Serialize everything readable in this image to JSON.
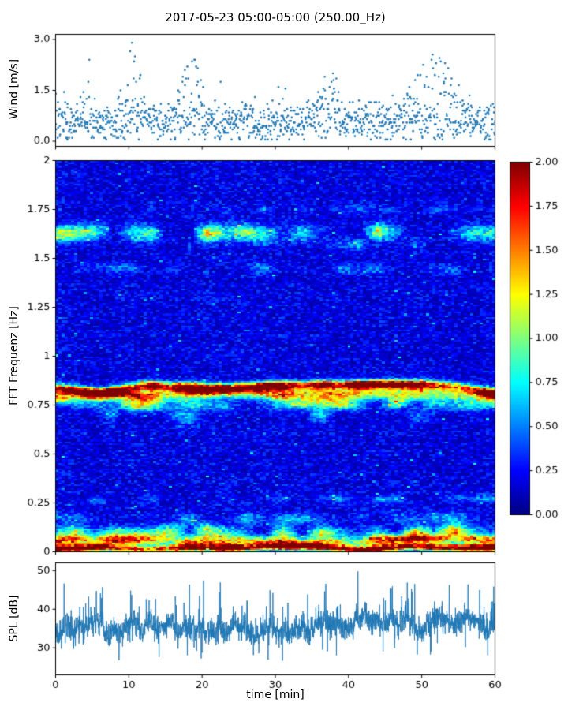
{
  "title": "2017-05-23 05:00-05:00 (250.00_Hz)",
  "xlabel": "time [min]",
  "xticks": [
    0,
    10,
    20,
    30,
    40,
    50,
    60
  ],
  "xtick_labels": [
    "0",
    "10",
    "20",
    "30",
    "40",
    "50",
    "60"
  ],
  "colors": {
    "accent": "#1f77b4",
    "axis": "#000000",
    "background": "#ffffff"
  },
  "chart_data": [
    {
      "type": "scatter",
      "ylabel": "Wind [m/s]",
      "xlim": [
        0,
        60
      ],
      "ylim": [
        -0.15,
        3.15
      ],
      "yticks": [
        0.0,
        1.5,
        3.0
      ],
      "ytick_labels": [
        "0.0",
        "1.5",
        "3.0"
      ],
      "marker_color": "#1f77b4",
      "generation": {
        "seed": 7,
        "points_per_min": 10,
        "samples_per_point": 2,
        "baseline_mean": 0.55,
        "baseline_sd": 0.3,
        "quantize": 0.05,
        "outlier_prob": 0.012,
        "gusts": [
          {
            "start": 2.5,
            "end": 6.0,
            "peak": 1.9
          },
          {
            "start": 7.5,
            "end": 13.5,
            "peak": 3.0
          },
          {
            "start": 15.5,
            "end": 21.5,
            "peak": 3.0
          },
          {
            "start": 24.5,
            "end": 27.0,
            "peak": 1.4
          },
          {
            "start": 33.0,
            "end": 42.5,
            "peak": 2.3
          },
          {
            "start": 45.0,
            "end": 58.5,
            "peak": 2.9
          }
        ]
      }
    },
    {
      "type": "heatmap",
      "ylabel": "FFT Frequenz [Hz]",
      "xlim": [
        0,
        60
      ],
      "ylim": [
        0,
        2
      ],
      "yticks": [
        0,
        0.25,
        0.5,
        0.75,
        1,
        1.25,
        1.5,
        1.75,
        2
      ],
      "ytick_labels": [
        "0",
        "0.25",
        "0.5",
        "0.75",
        "1",
        "1.25",
        "1.5",
        "1.75",
        "2"
      ],
      "colormap": "jet",
      "clim": [
        0,
        2
      ],
      "colorbar": {
        "ticks": [
          0,
          0.25,
          0.5,
          0.75,
          1.0,
          1.25,
          1.5,
          1.75,
          2.0
        ],
        "tick_labels": [
          "0.00",
          "0.25",
          "0.50",
          "0.75",
          "1.00",
          "1.25",
          "1.50",
          "1.75",
          "2.00"
        ]
      },
      "generation": {
        "seed": 3,
        "nx": 140,
        "ny": 220,
        "bg_base": 0.08,
        "bg_noise": 0.3,
        "speck_prob": 0.02,
        "speck_amp": 0.45,
        "bands": [
          {
            "center": 0.83,
            "sigma": 0.016,
            "amp": 2.1,
            "wobble": 0.025
          },
          {
            "center": 0.795,
            "sigma": 0.02,
            "amp": 1.25,
            "wobble": 0.02
          },
          {
            "center": 0.755,
            "sigma": 0.022,
            "amp": 0.8,
            "wobble": 0.02,
            "patchy": 0.15
          },
          {
            "center": 0.7,
            "sigma": 0.03,
            "amp": 0.5,
            "patchy": 0.45
          },
          {
            "center": 1.63,
            "sigma": 0.028,
            "amp": 0.75,
            "patchy": 0.35
          },
          {
            "center": 1.57,
            "sigma": 0.02,
            "amp": 0.35,
            "patchy": 0.5
          },
          {
            "center": 1.45,
            "sigma": 0.018,
            "amp": 0.28,
            "patchy": 0.45
          },
          {
            "center": 1.75,
            "sigma": 0.015,
            "amp": 0.22,
            "patchy": 0.55
          },
          {
            "center": 0.27,
            "sigma": 0.014,
            "amp": 0.3,
            "patchy": 0.4
          },
          {
            "center": 0.175,
            "sigma": 0.02,
            "amp": 0.35,
            "patchy": 0.3
          },
          {
            "center": 0.1,
            "sigma": 0.025,
            "amp": 0.9,
            "patchy": 0.1
          },
          {
            "center": 0.055,
            "sigma": 0.018,
            "amp": 1.2
          },
          {
            "center": 0.02,
            "sigma": 0.012,
            "amp": 2.2
          }
        ]
      }
    },
    {
      "type": "line",
      "ylabel": "SPL [dB]",
      "xlim": [
        0,
        60
      ],
      "ylim": [
        23,
        52
      ],
      "yticks": [
        30,
        40,
        50
      ],
      "ytick_labels": [
        "30",
        "40",
        "50"
      ],
      "line_color": "#1f77b4",
      "generation": {
        "seed": 11,
        "n_points": 2600,
        "base": 35.0,
        "rise_at": 35,
        "rise": 1.6,
        "hf_sd": 1.5,
        "spike_up_prob": 0.035,
        "spike_dn_prob": 0.018,
        "min": 25.2,
        "max": 49.8
      }
    }
  ]
}
